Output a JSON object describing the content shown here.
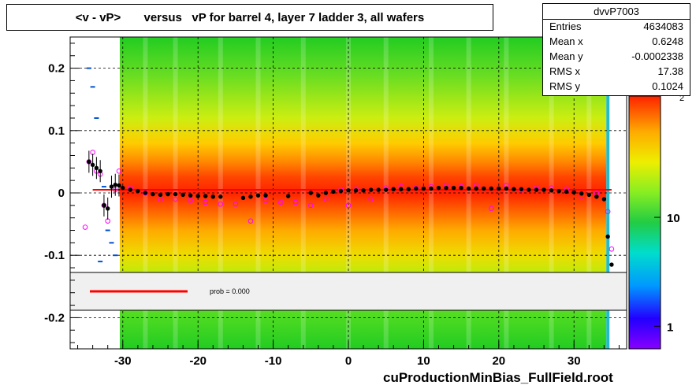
{
  "title": "<v - vP>       versus   vP for barrel 4, layer 7 ladder 3, all wafers",
  "stats": {
    "name": "dvvP7003",
    "rows": [
      {
        "label": "Entries",
        "value": "4634083"
      },
      {
        "label": "Mean x",
        "value": "0.6248"
      },
      {
        "label": "Mean y",
        "value": "-0.0002338"
      },
      {
        "label": "RMS x",
        "value": "17.38"
      },
      {
        "label": "RMS y",
        "value": "0.1024"
      }
    ]
  },
  "legend": {
    "fit_label": "prob = 0.000",
    "fit_color": "#ff0000"
  },
  "footer": "cuProductionMinBias_FullField.root",
  "colors": {
    "profile_black": "#000000",
    "profile_magenta": "#ff00ff",
    "outlier_blue": "#0050d0",
    "fit_red": "#ff0000"
  },
  "chart_data": {
    "type": "heatmap",
    "title": "<v - vP>       versus   vP for barrel 4, layer 7 ladder 3, all wafers",
    "xlabel": "",
    "ylabel": "",
    "xlim": [
      -37,
      37
    ],
    "ylim": [
      -0.25,
      0.25
    ],
    "grid": true,
    "x_ticks": [
      -30,
      -20,
      -10,
      0,
      10,
      20,
      30
    ],
    "y_ticks": [
      0.2,
      0.1,
      0,
      -0.1,
      -0.2
    ],
    "z_scale": "log",
    "z_ticks": [
      {
        "value": 1,
        "label": "1"
      },
      {
        "value": 10,
        "label": "10"
      }
    ],
    "z_ticks_partial": "2",
    "legend_position": "inside-lower-left",
    "fit": {
      "type": "line",
      "y_value": 0.005,
      "x_range": [
        -34,
        35
      ],
      "label": "prob = 0.000"
    },
    "profile_black": {
      "x": [
        -34.5,
        -34,
        -33.5,
        -33,
        -32.5,
        -32,
        -31.5,
        -31,
        -30.5,
        -30,
        -29,
        -28,
        -27,
        -26,
        -25,
        -24,
        -23,
        -22,
        -21,
        -20,
        -19,
        -18,
        -17,
        -14,
        -13,
        -12,
        -11,
        -8,
        -5,
        -4,
        -3,
        -2,
        -1,
        0,
        1,
        2,
        3,
        4,
        5,
        6,
        7,
        8,
        9,
        10,
        11,
        12,
        13,
        14,
        15,
        16,
        17,
        18,
        19,
        20,
        21,
        22,
        23,
        24,
        25,
        26,
        27,
        28,
        29,
        30,
        31,
        32,
        33,
        34,
        34.5,
        35
      ],
      "y": [
        0.05,
        0.045,
        0.04,
        0.035,
        -0.02,
        -0.025,
        0.01,
        0.013,
        0.012,
        0.008,
        0.005,
        0.003,
        0.0,
        -0.002,
        -0.003,
        -0.002,
        -0.002,
        -0.003,
        -0.004,
        -0.005,
        -0.005,
        -0.006,
        -0.006,
        -0.008,
        -0.006,
        -0.004,
        -0.004,
        -0.005,
        0.0,
        -0.004,
        0.0,
        0.002,
        0.003,
        0.004,
        0.004,
        0.004,
        0.005,
        0.005,
        0.005,
        0.006,
        0.006,
        0.006,
        0.007,
        0.007,
        0.007,
        0.008,
        0.008,
        0.008,
        0.008,
        0.007,
        0.007,
        0.007,
        0.007,
        0.007,
        0.007,
        0.006,
        0.006,
        0.005,
        0.005,
        0.005,
        0.004,
        0.003,
        0.002,
        0.001,
        -0.001,
        -0.003,
        -0.006,
        -0.01,
        -0.07,
        -0.115
      ]
    },
    "profile_magenta": {
      "x": [
        -35,
        -34.5,
        -34,
        -33.5,
        -33,
        -32.5,
        -32,
        -31,
        -30.5,
        -29,
        -27,
        -25,
        -23,
        -21,
        -19,
        -17,
        -15,
        -13,
        -11,
        -9,
        -7,
        -5,
        -3,
        -1,
        0,
        1,
        3,
        5,
        7,
        9,
        11,
        13,
        15,
        17,
        19,
        21,
        23,
        25,
        27,
        29,
        31,
        33,
        34.5,
        35
      ],
      "y": [
        -0.055,
        0.05,
        0.065,
        0.035,
        0.03,
        -0.02,
        -0.045,
        0.005,
        0.035,
        0.008,
        0.0,
        -0.01,
        -0.01,
        -0.012,
        -0.015,
        -0.018,
        -0.018,
        -0.045,
        -0.012,
        -0.015,
        -0.015,
        -0.02,
        -0.01,
        0.005,
        -0.02,
        0.006,
        -0.01,
        0.008,
        0.01,
        0.008,
        0.01,
        0.012,
        0.01,
        0.012,
        -0.025,
        0.012,
        0.005,
        0.008,
        0.008,
        0.006,
        -0.005,
        0.0,
        -0.03,
        -0.09
      ]
    },
    "outliers_blue": {
      "x": [
        -34.5,
        -34,
        -33.5,
        -33,
        -32.5,
        -32,
        -31.5,
        -31
      ],
      "y": [
        0.2,
        0.17,
        0.12,
        -0.11,
        0.01,
        -0.06,
        -0.08,
        -0.1
      ]
    }
  }
}
